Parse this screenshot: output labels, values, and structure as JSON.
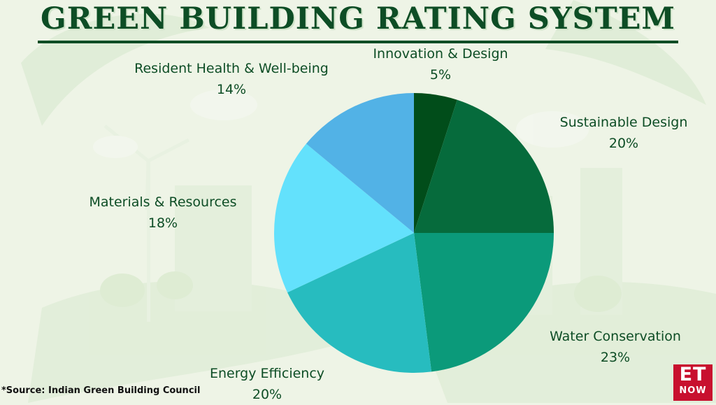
{
  "title": "GREEN BUILDING RATING SYSTEM",
  "source": "*Source: Indian Green Building Council",
  "logo": {
    "top": "ET",
    "bottom": "NOW"
  },
  "colors": {
    "title": "#0d4d25",
    "label": "#0d4d25",
    "logo_bg": "#c8102e"
  },
  "chart_data": {
    "type": "pie",
    "title": "GREEN BUILDING RATING SYSTEM",
    "start": "12 o'clock",
    "direction": "clockwise",
    "slices": [
      {
        "name": "Innovation & Design",
        "value": 5,
        "label": "5%",
        "color": "#014d1a"
      },
      {
        "name": "Sustainable Design",
        "value": 20,
        "label": "20%",
        "color": "#066b3c"
      },
      {
        "name": "Water Conservation",
        "value": 23,
        "label": "23%",
        "color": "#0b9a7a"
      },
      {
        "name": "Energy Efficiency",
        "value": 20,
        "label": "20%",
        "color": "#27bcbf"
      },
      {
        "name": "Materials & Resources",
        "value": 18,
        "label": "18%",
        "color": "#63e1fc"
      },
      {
        "name": "Resident Health & Well-being",
        "value": 14,
        "label": "14%",
        "color": "#52b2e6"
      }
    ]
  }
}
